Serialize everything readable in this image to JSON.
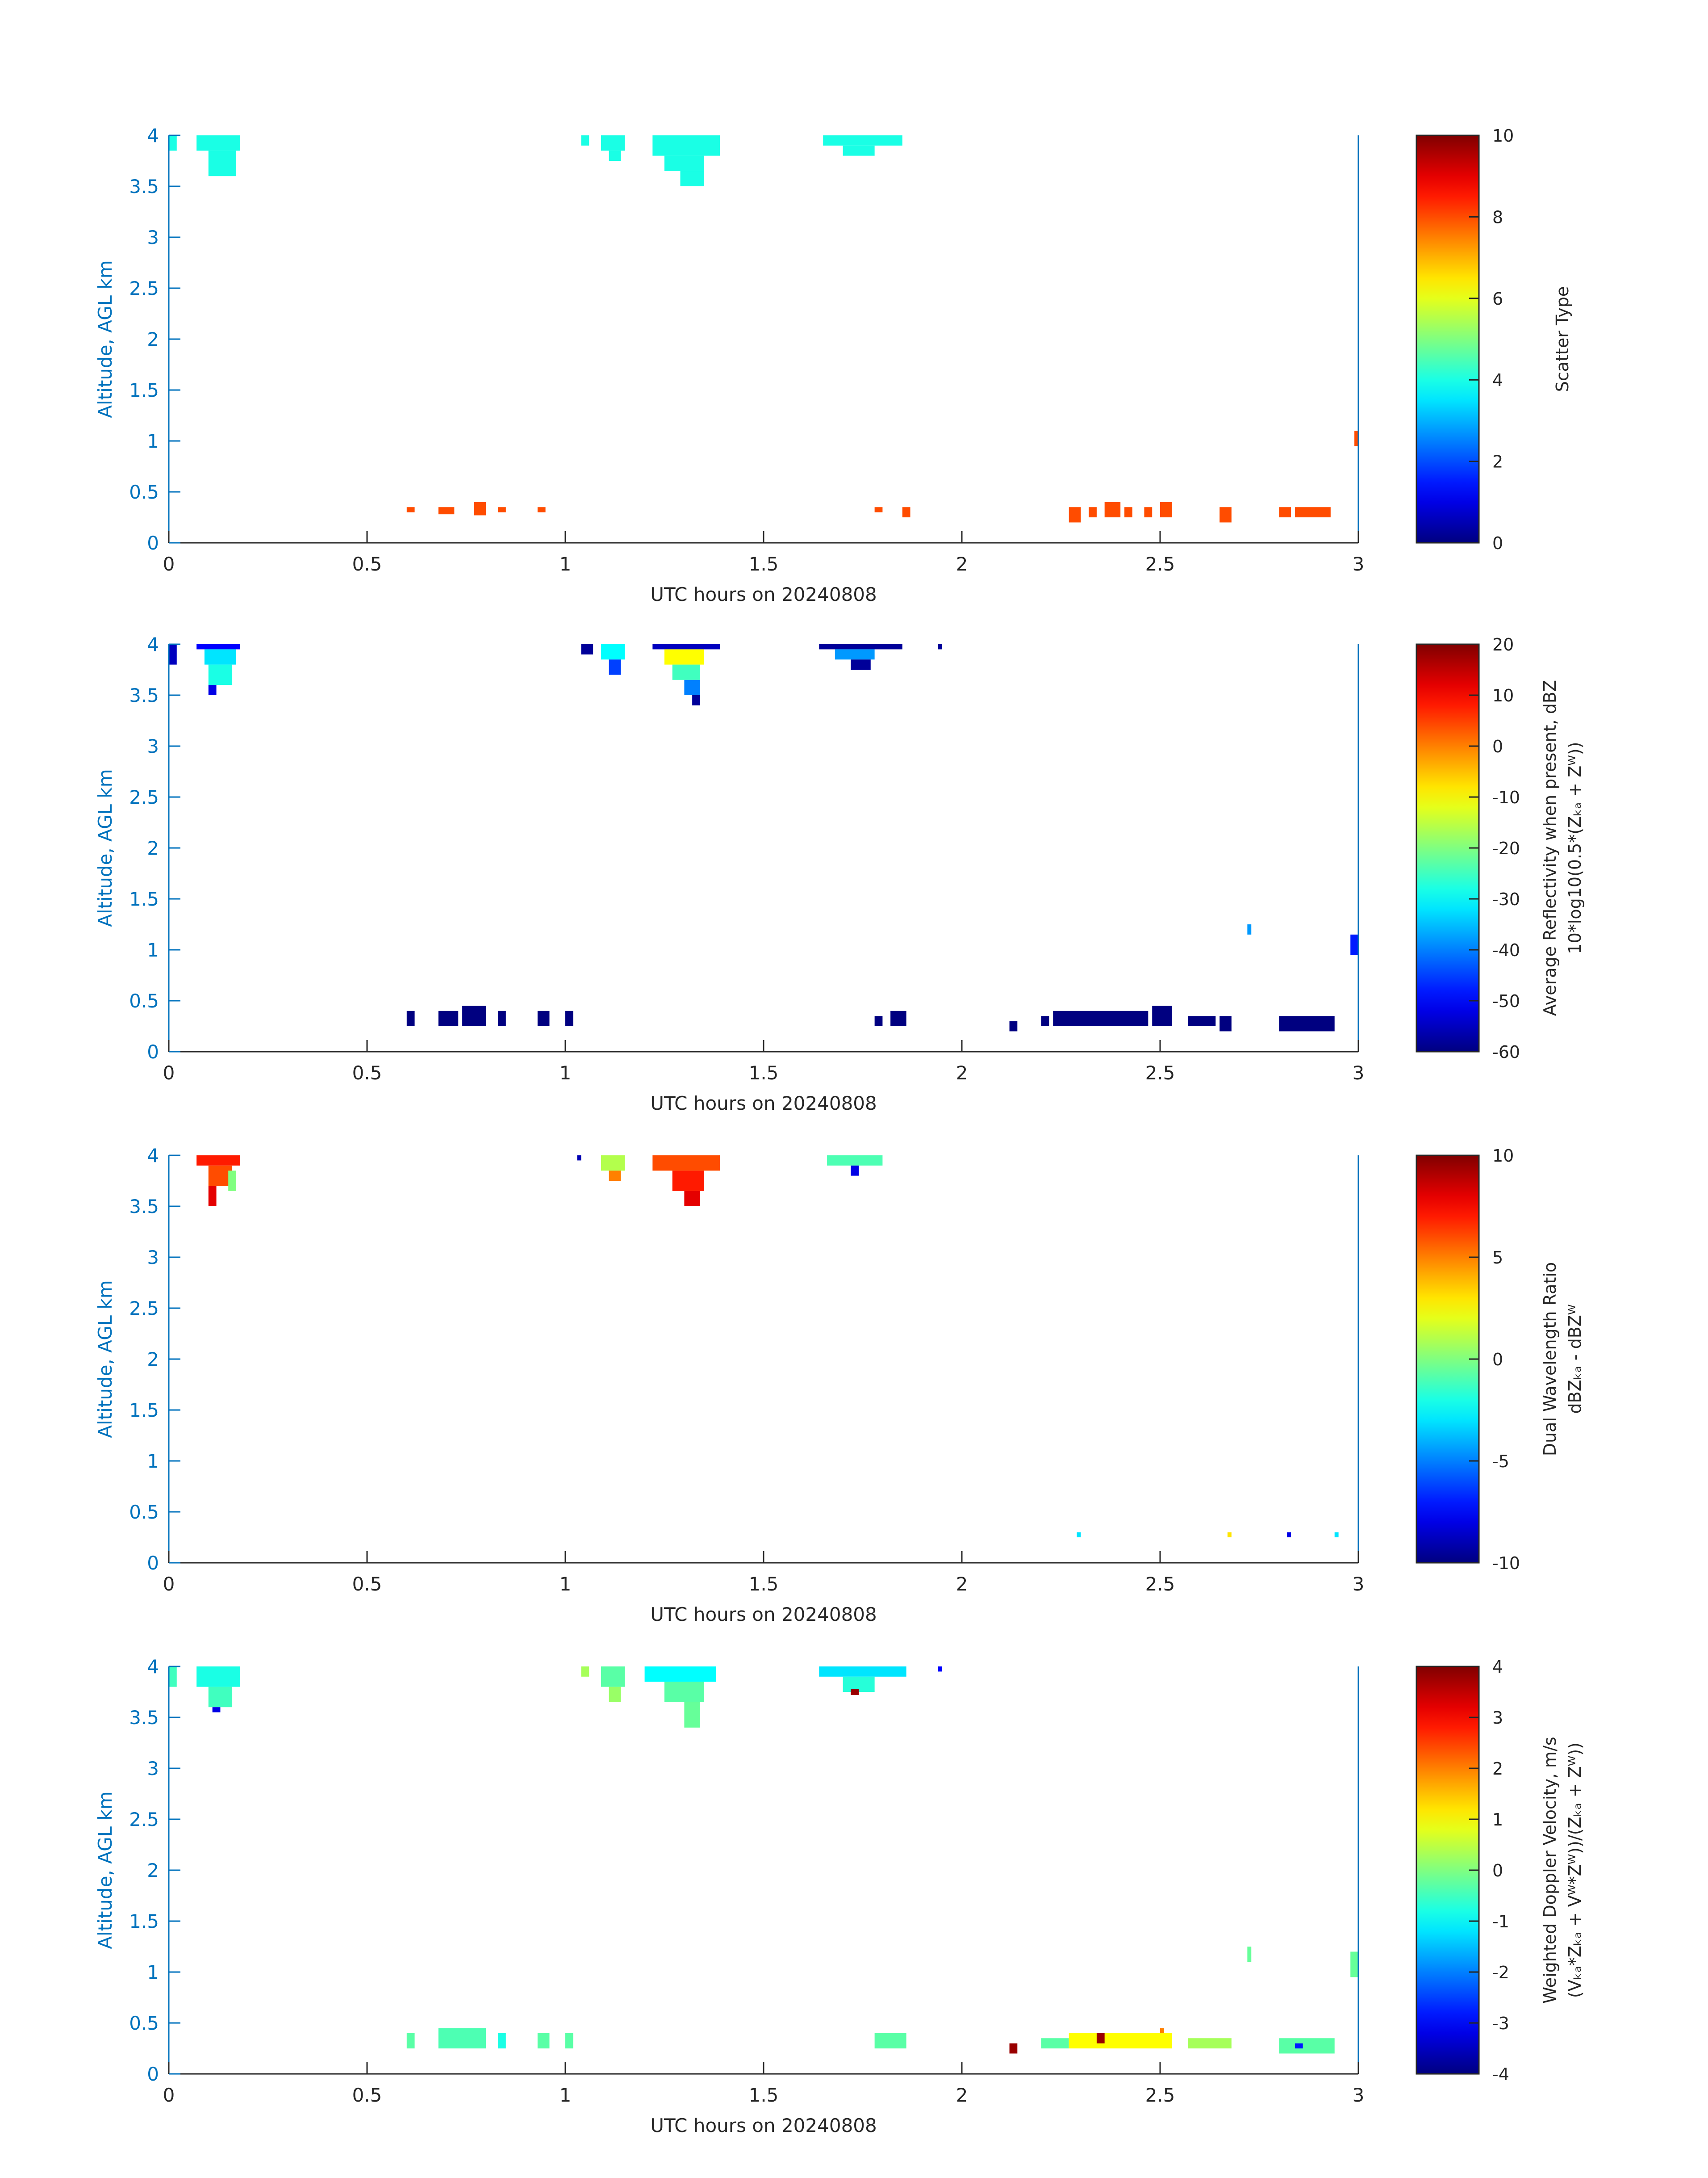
{
  "figure": {
    "colors": {
      "axis": "#0072BD",
      "text": "#262626",
      "background": "#ffffff"
    },
    "colormap": "jet"
  },
  "chart_data": [
    {
      "type": "heatmap",
      "xlabel": "UTC hours on 20240808",
      "ylabel": "Altitude, AGL km",
      "xlim": [
        0,
        3
      ],
      "ylim": [
        0,
        4
      ],
      "xticks": [
        "0",
        "0.5",
        "1",
        "1.5",
        "2",
        "2.5",
        "3"
      ],
      "yticks": [
        "0",
        "0.5",
        "1",
        "1.5",
        "2",
        "2.5",
        "3",
        "3.5",
        "4"
      ],
      "colorbar": {
        "label_lines": [
          "Scatter Type"
        ],
        "range": [
          0,
          10
        ],
        "ticks": [
          "0",
          "2",
          "4",
          "6",
          "8",
          "10"
        ]
      },
      "cells": [
        {
          "x0": 0.0,
          "x1": 0.02,
          "y0": 3.85,
          "y1": 4.0,
          "v": 4
        },
        {
          "x0": 0.07,
          "x1": 0.18,
          "y0": 3.85,
          "y1": 4.0,
          "v": 4
        },
        {
          "x0": 0.1,
          "x1": 0.17,
          "y0": 3.6,
          "y1": 3.85,
          "v": 4
        },
        {
          "x0": 1.04,
          "x1": 1.06,
          "y0": 3.9,
          "y1": 4.0,
          "v": 4
        },
        {
          "x0": 1.09,
          "x1": 1.15,
          "y0": 3.85,
          "y1": 4.0,
          "v": 4
        },
        {
          "x0": 1.11,
          "x1": 1.14,
          "y0": 3.75,
          "y1": 3.85,
          "v": 4
        },
        {
          "x0": 1.22,
          "x1": 1.39,
          "y0": 3.8,
          "y1": 4.0,
          "v": 4
        },
        {
          "x0": 1.25,
          "x1": 1.35,
          "y0": 3.65,
          "y1": 3.8,
          "v": 4
        },
        {
          "x0": 1.29,
          "x1": 1.35,
          "y0": 3.5,
          "y1": 3.65,
          "v": 4
        },
        {
          "x0": 1.65,
          "x1": 1.85,
          "y0": 3.9,
          "y1": 4.0,
          "v": 4
        },
        {
          "x0": 1.7,
          "x1": 1.78,
          "y0": 3.8,
          "y1": 3.9,
          "v": 4
        },
        {
          "x0": 0.6,
          "x1": 0.62,
          "y0": 0.3,
          "y1": 0.35,
          "v": 8
        },
        {
          "x0": 0.68,
          "x1": 0.72,
          "y0": 0.28,
          "y1": 0.35,
          "v": 8
        },
        {
          "x0": 0.77,
          "x1": 0.8,
          "y0": 0.27,
          "y1": 0.4,
          "v": 8
        },
        {
          "x0": 0.83,
          "x1": 0.85,
          "y0": 0.3,
          "y1": 0.35,
          "v": 8
        },
        {
          "x0": 0.93,
          "x1": 0.95,
          "y0": 0.3,
          "y1": 0.35,
          "v": 8
        },
        {
          "x0": 1.78,
          "x1": 1.8,
          "y0": 0.3,
          "y1": 0.35,
          "v": 8
        },
        {
          "x0": 1.85,
          "x1": 1.87,
          "y0": 0.25,
          "y1": 0.35,
          "v": 8
        },
        {
          "x0": 2.27,
          "x1": 2.3,
          "y0": 0.2,
          "y1": 0.35,
          "v": 8
        },
        {
          "x0": 2.32,
          "x1": 2.34,
          "y0": 0.25,
          "y1": 0.35,
          "v": 8
        },
        {
          "x0": 2.36,
          "x1": 2.4,
          "y0": 0.25,
          "y1": 0.4,
          "v": 8
        },
        {
          "x0": 2.41,
          "x1": 2.43,
          "y0": 0.25,
          "y1": 0.35,
          "v": 8
        },
        {
          "x0": 2.46,
          "x1": 2.48,
          "y0": 0.25,
          "y1": 0.35,
          "v": 8
        },
        {
          "x0": 2.5,
          "x1": 2.53,
          "y0": 0.25,
          "y1": 0.4,
          "v": 8
        },
        {
          "x0": 2.65,
          "x1": 2.68,
          "y0": 0.2,
          "y1": 0.35,
          "v": 8
        },
        {
          "x0": 2.8,
          "x1": 2.83,
          "y0": 0.25,
          "y1": 0.35,
          "v": 8
        },
        {
          "x0": 2.84,
          "x1": 2.93,
          "y0": 0.25,
          "y1": 0.35,
          "v": 8
        },
        {
          "x0": 2.99,
          "x1": 3.0,
          "y0": 0.95,
          "y1": 1.1,
          "v": 8
        }
      ]
    },
    {
      "type": "heatmap",
      "xlabel": "UTC hours on 20240808",
      "ylabel": "Altitude, AGL km",
      "xlim": [
        0,
        3
      ],
      "ylim": [
        0,
        4
      ],
      "xticks": [
        "0",
        "0.5",
        "1",
        "1.5",
        "2",
        "2.5",
        "3"
      ],
      "yticks": [
        "0",
        "0.5",
        "1",
        "1.5",
        "2",
        "2.5",
        "3",
        "3.5",
        "4"
      ],
      "colorbar": {
        "label_lines": [
          "Average Reflectivity when present, dBZ",
          "10*log10(0.5*(Zₖₐ + Zᵂ))"
        ],
        "range": [
          -60,
          20
        ],
        "ticks": [
          "-60",
          "-50",
          "-40",
          "-30",
          "-20",
          "-10",
          "0",
          "10",
          "20"
        ]
      },
      "cells": [
        {
          "x0": 0.0,
          "x1": 0.02,
          "y0": 3.8,
          "y1": 4.0,
          "v": -55
        },
        {
          "x0": 0.07,
          "x1": 0.18,
          "y0": 3.95,
          "y1": 4.0,
          "v": -50
        },
        {
          "x0": 0.09,
          "x1": 0.17,
          "y0": 3.8,
          "y1": 3.95,
          "v": -32
        },
        {
          "x0": 0.1,
          "x1": 0.16,
          "y0": 3.6,
          "y1": 3.8,
          "v": -28
        },
        {
          "x0": 0.1,
          "x1": 0.12,
          "y0": 3.5,
          "y1": 3.6,
          "v": -52
        },
        {
          "x0": 1.04,
          "x1": 1.07,
          "y0": 3.9,
          "y1": 4.0,
          "v": -58
        },
        {
          "x0": 1.09,
          "x1": 1.15,
          "y0": 3.85,
          "y1": 4.0,
          "v": -30
        },
        {
          "x0": 1.11,
          "x1": 1.14,
          "y0": 3.7,
          "y1": 3.85,
          "v": -45
        },
        {
          "x0": 1.22,
          "x1": 1.39,
          "y0": 3.95,
          "y1": 4.0,
          "v": -55
        },
        {
          "x0": 1.25,
          "x1": 1.35,
          "y0": 3.8,
          "y1": 3.95,
          "v": -10
        },
        {
          "x0": 1.27,
          "x1": 1.34,
          "y0": 3.65,
          "y1": 3.8,
          "v": -25
        },
        {
          "x0": 1.3,
          "x1": 1.34,
          "y0": 3.5,
          "y1": 3.65,
          "v": -40
        },
        {
          "x0": 1.32,
          "x1": 1.34,
          "y0": 3.4,
          "y1": 3.5,
          "v": -58
        },
        {
          "x0": 1.64,
          "x1": 1.85,
          "y0": 3.95,
          "y1": 4.0,
          "v": -58
        },
        {
          "x0": 1.68,
          "x1": 1.78,
          "y0": 3.85,
          "y1": 3.95,
          "v": -38
        },
        {
          "x0": 1.72,
          "x1": 1.77,
          "y0": 3.75,
          "y1": 3.85,
          "v": -58
        },
        {
          "x0": 1.94,
          "x1": 1.95,
          "y0": 3.95,
          "y1": 4.0,
          "v": -58
        },
        {
          "x0": 0.6,
          "x1": 0.62,
          "y0": 0.25,
          "y1": 0.4,
          "v": -60
        },
        {
          "x0": 0.68,
          "x1": 0.73,
          "y0": 0.25,
          "y1": 0.4,
          "v": -60
        },
        {
          "x0": 0.74,
          "x1": 0.8,
          "y0": 0.25,
          "y1": 0.45,
          "v": -60
        },
        {
          "x0": 0.83,
          "x1": 0.85,
          "y0": 0.25,
          "y1": 0.4,
          "v": -60
        },
        {
          "x0": 0.93,
          "x1": 0.96,
          "y0": 0.25,
          "y1": 0.4,
          "v": -60
        },
        {
          "x0": 1.0,
          "x1": 1.02,
          "y0": 0.25,
          "y1": 0.4,
          "v": -60
        },
        {
          "x0": 1.78,
          "x1": 1.8,
          "y0": 0.25,
          "y1": 0.35,
          "v": -60
        },
        {
          "x0": 1.82,
          "x1": 1.86,
          "y0": 0.25,
          "y1": 0.4,
          "v": -60
        },
        {
          "x0": 2.12,
          "x1": 2.14,
          "y0": 0.2,
          "y1": 0.3,
          "v": -60
        },
        {
          "x0": 2.2,
          "x1": 2.22,
          "y0": 0.25,
          "y1": 0.35,
          "v": -60
        },
        {
          "x0": 2.23,
          "x1": 2.47,
          "y0": 0.25,
          "y1": 0.4,
          "v": -60
        },
        {
          "x0": 2.48,
          "x1": 2.53,
          "y0": 0.25,
          "y1": 0.45,
          "v": -60
        },
        {
          "x0": 2.57,
          "x1": 2.64,
          "y0": 0.25,
          "y1": 0.35,
          "v": -60
        },
        {
          "x0": 2.65,
          "x1": 2.68,
          "y0": 0.2,
          "y1": 0.35,
          "v": -60
        },
        {
          "x0": 2.8,
          "x1": 2.94,
          "y0": 0.2,
          "y1": 0.35,
          "v": -60
        },
        {
          "x0": 2.72,
          "x1": 2.73,
          "y0": 1.15,
          "y1": 1.25,
          "v": -38
        },
        {
          "x0": 2.98,
          "x1": 3.0,
          "y0": 0.95,
          "y1": 1.15,
          "v": -48
        }
      ]
    },
    {
      "type": "heatmap",
      "xlabel": "UTC hours on 20240808",
      "ylabel": "Altitude, AGL km",
      "xlim": [
        0,
        3
      ],
      "ylim": [
        0,
        4
      ],
      "xticks": [
        "0",
        "0.5",
        "1",
        "1.5",
        "2",
        "2.5",
        "3"
      ],
      "yticks": [
        "0",
        "0.5",
        "1",
        "1.5",
        "2",
        "2.5",
        "3",
        "3.5",
        "4"
      ],
      "colorbar": {
        "label_lines": [
          "Dual Wavelength Ratio",
          "dBZₖₐ - dBZᵂ"
        ],
        "range": [
          -10,
          10
        ],
        "ticks": [
          "-10",
          "-5",
          "0",
          "5",
          "10"
        ]
      },
      "cells": [
        {
          "x0": 0.07,
          "x1": 0.18,
          "y0": 3.9,
          "y1": 4.0,
          "v": 7
        },
        {
          "x0": 0.1,
          "x1": 0.16,
          "y0": 3.7,
          "y1": 3.9,
          "v": 6
        },
        {
          "x0": 0.15,
          "x1": 0.17,
          "y0": 3.65,
          "y1": 3.85,
          "v": 0
        },
        {
          "x0": 0.1,
          "x1": 0.12,
          "y0": 3.5,
          "y1": 3.7,
          "v": 8
        },
        {
          "x0": 1.03,
          "x1": 1.04,
          "y0": 3.95,
          "y1": 4.0,
          "v": -9
        },
        {
          "x0": 1.09,
          "x1": 1.15,
          "y0": 3.85,
          "y1": 4.0,
          "v": 1
        },
        {
          "x0": 1.11,
          "x1": 1.14,
          "y0": 3.75,
          "y1": 3.85,
          "v": 5
        },
        {
          "x0": 1.22,
          "x1": 1.39,
          "y0": 3.85,
          "y1": 4.0,
          "v": 6
        },
        {
          "x0": 1.27,
          "x1": 1.35,
          "y0": 3.65,
          "y1": 3.85,
          "v": 7
        },
        {
          "x0": 1.3,
          "x1": 1.34,
          "y0": 3.5,
          "y1": 3.65,
          "v": 8
        },
        {
          "x0": 1.66,
          "x1": 1.8,
          "y0": 3.9,
          "y1": 4.0,
          "v": -1
        },
        {
          "x0": 1.72,
          "x1": 1.74,
          "y0": 3.8,
          "y1": 3.9,
          "v": -8
        },
        {
          "x0": 2.29,
          "x1": 2.3,
          "y0": 0.25,
          "y1": 0.3,
          "v": -3
        },
        {
          "x0": 2.67,
          "x1": 2.68,
          "y0": 0.25,
          "y1": 0.3,
          "v": 3
        },
        {
          "x0": 2.82,
          "x1": 2.83,
          "y0": 0.25,
          "y1": 0.3,
          "v": -8
        },
        {
          "x0": 2.94,
          "x1": 2.95,
          "y0": 0.25,
          "y1": 0.3,
          "v": -3
        }
      ]
    },
    {
      "type": "heatmap",
      "xlabel": "UTC hours on 20240808",
      "ylabel": "Altitude, AGL km",
      "xlim": [
        0,
        3
      ],
      "ylim": [
        0,
        4
      ],
      "xticks": [
        "0",
        "0.5",
        "1",
        "1.5",
        "2",
        "2.5",
        "3"
      ],
      "yticks": [
        "0",
        "0.5",
        "1",
        "1.5",
        "2",
        "2.5",
        "3",
        "3.5",
        "4"
      ],
      "colorbar": {
        "label_lines": [
          "Weighted Doppler Velocity, m/s",
          "(Vₖₐ*Zₖₐ + Vᵂ*Zᵂ))/(Zₖₐ + Zᵂ))"
        ],
        "range": [
          -4,
          4
        ],
        "ticks": [
          "-4",
          "-3",
          "-2",
          "-1",
          "0",
          "1",
          "2",
          "3",
          "4"
        ]
      },
      "cells": [
        {
          "x0": 0.0,
          "x1": 0.02,
          "y0": 3.8,
          "y1": 4.0,
          "v": -0.5
        },
        {
          "x0": 0.07,
          "x1": 0.18,
          "y0": 3.8,
          "y1": 4.0,
          "v": -0.8
        },
        {
          "x0": 0.1,
          "x1": 0.16,
          "y0": 3.6,
          "y1": 3.8,
          "v": -0.5
        },
        {
          "x0": 0.11,
          "x1": 0.13,
          "y0": 3.55,
          "y1": 3.6,
          "v": -3.2
        },
        {
          "x0": 1.04,
          "x1": 1.06,
          "y0": 3.9,
          "y1": 4.0,
          "v": 0.3
        },
        {
          "x0": 1.09,
          "x1": 1.15,
          "y0": 3.8,
          "y1": 4.0,
          "v": -0.3
        },
        {
          "x0": 1.11,
          "x1": 1.14,
          "y0": 3.65,
          "y1": 3.8,
          "v": 0.2
        },
        {
          "x0": 1.2,
          "x1": 1.38,
          "y0": 3.85,
          "y1": 4.0,
          "v": -1.0
        },
        {
          "x0": 1.25,
          "x1": 1.35,
          "y0": 3.65,
          "y1": 3.85,
          "v": -0.3
        },
        {
          "x0": 1.3,
          "x1": 1.34,
          "y0": 3.4,
          "y1": 3.65,
          "v": -0.2
        },
        {
          "x0": 1.64,
          "x1": 1.86,
          "y0": 3.9,
          "y1": 4.0,
          "v": -1.2
        },
        {
          "x0": 1.7,
          "x1": 1.78,
          "y0": 3.75,
          "y1": 3.9,
          "v": -0.7
        },
        {
          "x0": 1.72,
          "x1": 1.74,
          "y0": 3.72,
          "y1": 3.78,
          "v": 3.8
        },
        {
          "x0": 1.94,
          "x1": 1.95,
          "y0": 3.95,
          "y1": 4.0,
          "v": -3.0
        },
        {
          "x0": 0.6,
          "x1": 0.62,
          "y0": 0.25,
          "y1": 0.4,
          "v": -0.3
        },
        {
          "x0": 0.68,
          "x1": 0.8,
          "y0": 0.25,
          "y1": 0.45,
          "v": -0.4
        },
        {
          "x0": 0.83,
          "x1": 0.85,
          "y0": 0.25,
          "y1": 0.4,
          "v": -0.8
        },
        {
          "x0": 0.93,
          "x1": 0.96,
          "y0": 0.25,
          "y1": 0.4,
          "v": -0.3
        },
        {
          "x0": 1.0,
          "x1": 1.02,
          "y0": 0.25,
          "y1": 0.4,
          "v": -0.3
        },
        {
          "x0": 1.78,
          "x1": 1.86,
          "y0": 0.25,
          "y1": 0.4,
          "v": -0.3
        },
        {
          "x0": 2.12,
          "x1": 2.14,
          "y0": 0.2,
          "y1": 0.3,
          "v": 3.8
        },
        {
          "x0": 2.2,
          "x1": 2.27,
          "y0": 0.25,
          "y1": 0.35,
          "v": -0.3
        },
        {
          "x0": 2.27,
          "x1": 2.53,
          "y0": 0.25,
          "y1": 0.4,
          "v": 1.0
        },
        {
          "x0": 2.34,
          "x1": 2.36,
          "y0": 0.3,
          "y1": 0.4,
          "v": 3.8
        },
        {
          "x0": 2.5,
          "x1": 2.51,
          "y0": 0.4,
          "y1": 0.45,
          "v": 2.0
        },
        {
          "x0": 2.57,
          "x1": 2.68,
          "y0": 0.25,
          "y1": 0.35,
          "v": 0.3
        },
        {
          "x0": 2.8,
          "x1": 2.94,
          "y0": 0.2,
          "y1": 0.35,
          "v": -0.3
        },
        {
          "x0": 2.84,
          "x1": 2.86,
          "y0": 0.25,
          "y1": 0.3,
          "v": -2.8
        },
        {
          "x0": 2.72,
          "x1": 2.73,
          "y0": 1.1,
          "y1": 1.25,
          "v": -0.2
        },
        {
          "x0": 2.98,
          "x1": 3.0,
          "y0": 0.95,
          "y1": 1.2,
          "v": -0.2
        }
      ]
    }
  ]
}
